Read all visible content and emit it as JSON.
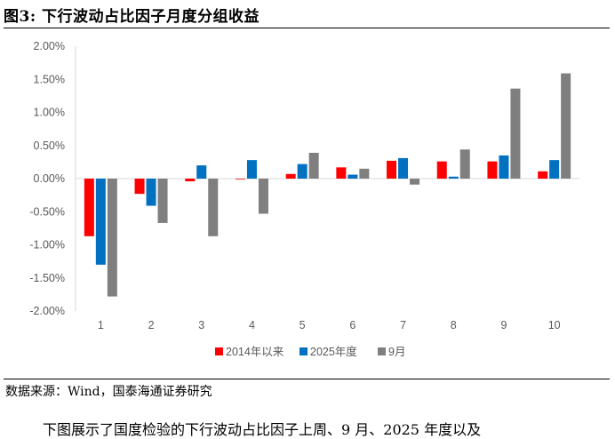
{
  "figure": {
    "title": "图3:  下行波动占比因子月度分组收益",
    "source": "数据来源：Wind，国泰海通证券研究",
    "body_text": "下图展示了国度检验的下行波动占比因子上周、9 月、2025 年度以及"
  },
  "chart_data": {
    "type": "bar",
    "categories": [
      "1",
      "2",
      "3",
      "4",
      "5",
      "6",
      "7",
      "8",
      "9",
      "10"
    ],
    "series": [
      {
        "name": "2014年以来",
        "color": "#ff0000",
        "values": [
          -0.87,
          -0.23,
          -0.04,
          -0.01,
          0.07,
          0.17,
          0.27,
          0.26,
          0.26,
          0.11
        ]
      },
      {
        "name": "2025年度",
        "color": "#0070c0",
        "values": [
          -1.3,
          -0.41,
          0.2,
          0.28,
          0.22,
          0.06,
          0.31,
          0.03,
          0.35,
          0.28
        ]
      },
      {
        "name": "9月",
        "color": "#7f7f7f",
        "values": [
          -1.78,
          -0.67,
          -0.87,
          -0.53,
          0.39,
          0.15,
          -0.09,
          0.44,
          1.36,
          1.59
        ]
      }
    ],
    "yticks": [
      "2.00%",
      "1.50%",
      "1.00%",
      "0.50%",
      "0.00%",
      "-0.50%",
      "-1.00%",
      "-1.50%",
      "-2.00%"
    ],
    "ylim": [
      -2.0,
      2.0
    ],
    "legend_position": "bottom",
    "grid": false
  }
}
